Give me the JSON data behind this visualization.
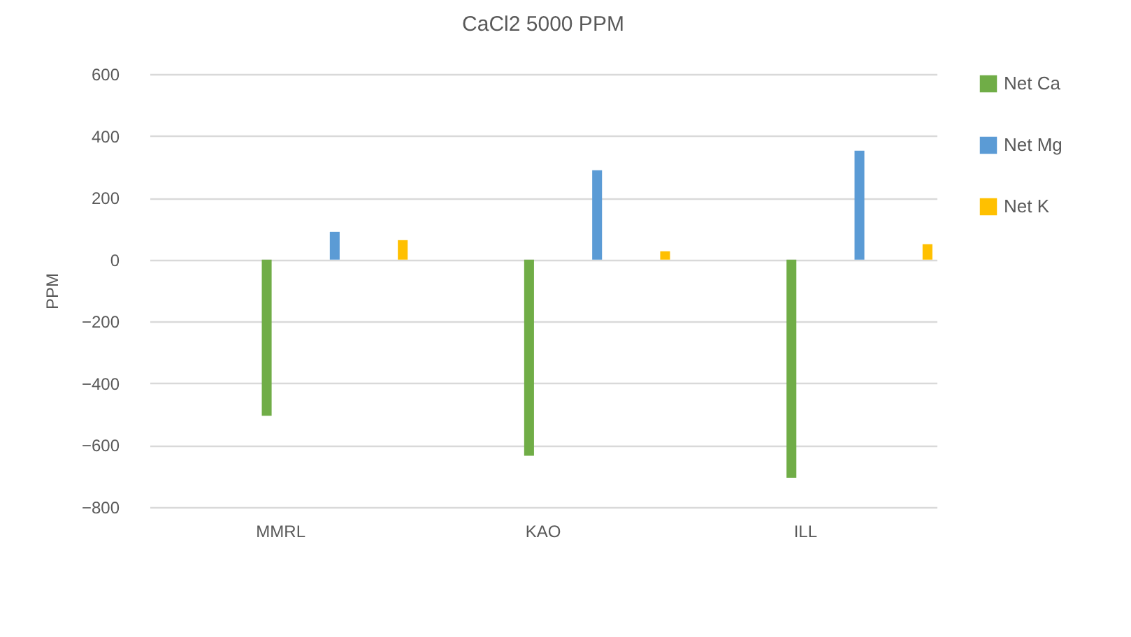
{
  "chart_data": {
    "type": "bar",
    "title": "CaCl2 5000 PPM",
    "ylabel": "PPM",
    "categories": [
      "MMRL",
      "KAO",
      "ILL"
    ],
    "series": [
      {
        "name": "Net Ca",
        "color": "#70ad47",
        "values": [
          -505,
          -634,
          -705
        ]
      },
      {
        "name": "Net Mg",
        "color": "#5b9bd5",
        "values": [
          90,
          289,
          352
        ]
      },
      {
        "name": "Net K",
        "color": "#ffc000",
        "values": [
          63,
          27,
          50
        ]
      }
    ],
    "ylim": [
      -800,
      600
    ],
    "yticks": [
      -800,
      -600,
      -400,
      -200,
      0,
      200,
      400,
      600
    ],
    "grid": "y",
    "legend": "right"
  }
}
